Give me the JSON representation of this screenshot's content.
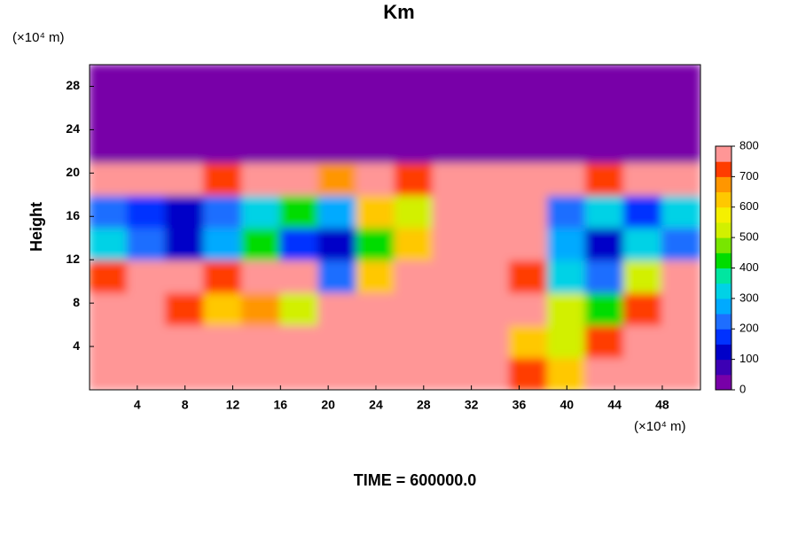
{
  "chart_data": {
    "type": "contour",
    "title": "Km",
    "ylabel": "Height",
    "yunit": "(×10⁴ m)",
    "xunit": "(×10⁴ m)",
    "footer": "TIME = 600000.0",
    "xlim": [
      0,
      51.2
    ],
    "ylim": [
      0,
      30
    ],
    "xticks": [
      4,
      8,
      12,
      16,
      20,
      24,
      28,
      32,
      36,
      40,
      44,
      48
    ],
    "yticks": [
      4,
      8,
      12,
      16,
      20,
      24,
      28
    ],
    "x": [
      1.6,
      4.8,
      8,
      11.2,
      14.4,
      17.6,
      20.8,
      24,
      27.2,
      30.4,
      33.6,
      36.8,
      40,
      43.2,
      46.4,
      49.6
    ],
    "y": [
      1.5,
      4.5,
      7.5,
      10.5,
      13.5,
      16.5,
      19.5,
      22.5,
      25.5,
      28.5
    ],
    "z": [
      [
        800,
        800,
        800,
        800,
        800,
        800,
        800,
        800,
        800,
        800,
        800,
        700,
        600,
        800,
        800,
        800
      ],
      [
        800,
        800,
        800,
        800,
        800,
        800,
        800,
        800,
        800,
        800,
        800,
        600,
        500,
        700,
        800,
        800
      ],
      [
        800,
        800,
        700,
        600,
        650,
        500,
        800,
        800,
        800,
        800,
        800,
        800,
        500,
        400,
        700,
        800
      ],
      [
        700,
        800,
        800,
        700,
        750,
        800,
        200,
        600,
        800,
        800,
        800,
        700,
        300,
        200,
        500,
        800
      ],
      [
        300,
        200,
        100,
        250,
        400,
        150,
        100,
        400,
        600,
        750,
        800,
        800,
        250,
        100,
        300,
        200
      ],
      [
        200,
        150,
        100,
        200,
        300,
        400,
        250,
        600,
        500,
        800,
        800,
        800,
        200,
        300,
        150,
        300
      ],
      [
        750,
        800,
        800,
        700,
        800,
        800,
        650,
        800,
        700,
        750,
        800,
        800,
        800,
        700,
        800,
        800
      ],
      [
        0,
        0,
        0,
        0,
        0,
        0,
        0,
        0,
        0,
        0,
        0,
        0,
        0,
        0,
        0,
        0
      ],
      [
        0,
        0,
        0,
        0,
        0,
        0,
        0,
        0,
        0,
        0,
        0,
        0,
        0,
        0,
        0,
        0
      ],
      [
        0,
        0,
        0,
        0,
        0,
        0,
        0,
        0,
        0,
        0,
        0,
        0,
        0,
        0,
        0,
        0
      ]
    ],
    "clim": [
      0,
      800
    ],
    "cticks": [
      0,
      100,
      200,
      300,
      400,
      500,
      600,
      700,
      800
    ],
    "colors": [
      "#7800a8",
      "#3c00b4",
      "#0000c8",
      "#0032ff",
      "#1e6eff",
      "#00aaff",
      "#00d2e6",
      "#00e6a0",
      "#00dc00",
      "#78e600",
      "#d2f000",
      "#f5f000",
      "#ffc800",
      "#ff9600",
      "#ff3c00",
      "#ff9696"
    ]
  }
}
